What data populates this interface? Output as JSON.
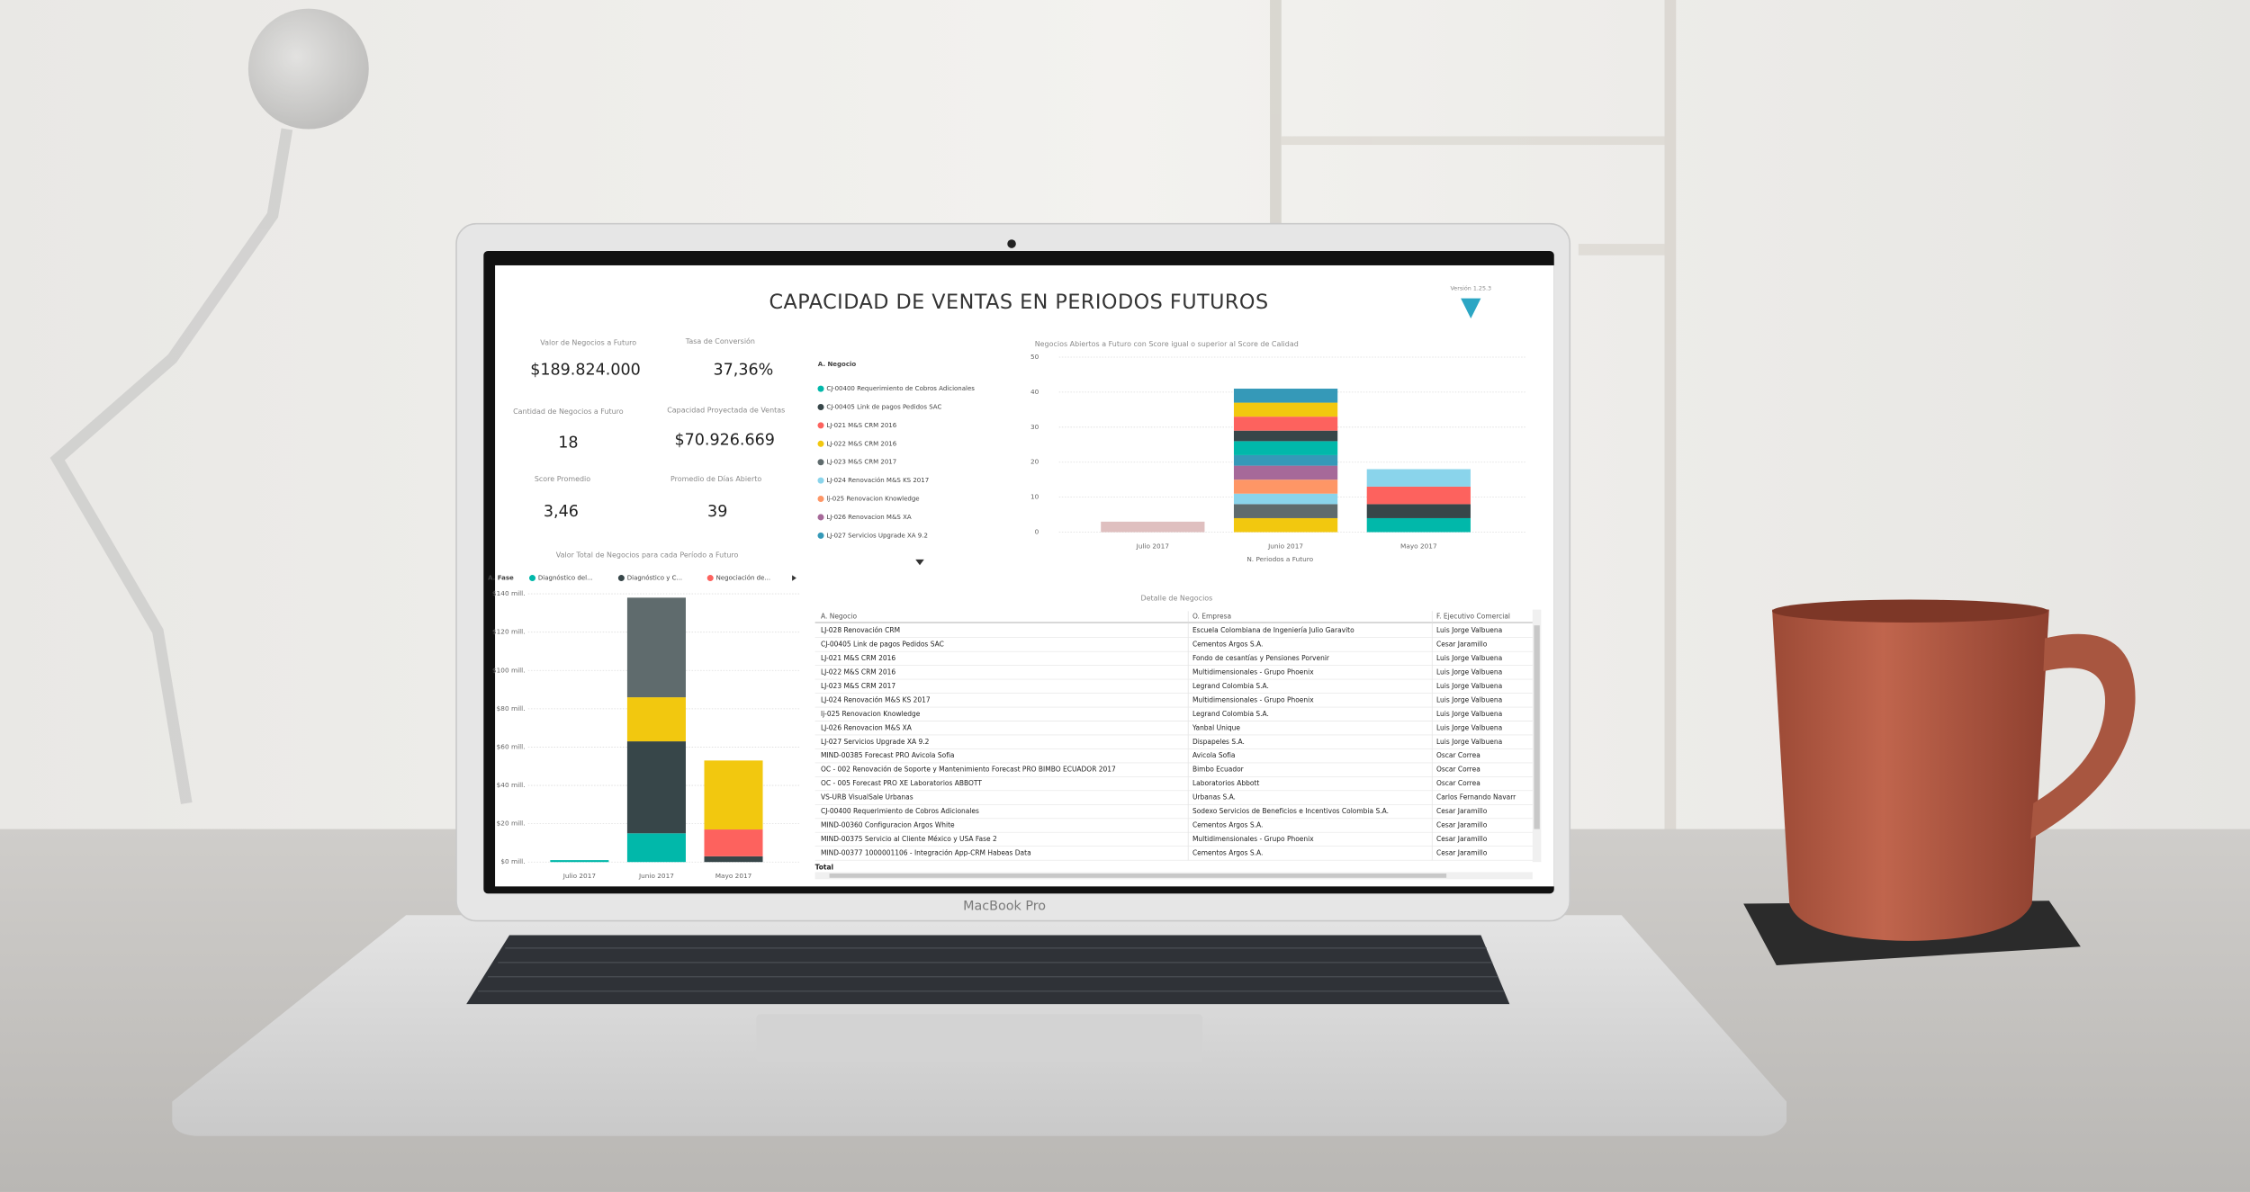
{
  "laptop_label": "MacBook Pro",
  "dashboard": {
    "title": "CAPACIDAD DE VENTAS EN PERIODOS FUTUROS",
    "version": "Versión 1.25.3",
    "kpis": [
      {
        "label": "Valor de Negocios a Futuro",
        "value": "$189.824.000"
      },
      {
        "label": "Tasa de Conversión",
        "value": "37,36%"
      },
      {
        "label": "Cantidad de Negocios a Futuro",
        "value": "18"
      },
      {
        "label": "Capacidad Proyectada de Ventas",
        "value": "$70.926.669"
      },
      {
        "label": "Score Promedio",
        "value": "3,46"
      },
      {
        "label": "Promedio de Días Abierto",
        "value": "39"
      }
    ],
    "table": {
      "title": "Detalle de Negocios",
      "columns": [
        "A. Negocio",
        "O. Empresa",
        "F. Ejecutivo Comercial"
      ],
      "rows": [
        [
          "LJ-028 Renovación CRM",
          "Escuela Colombiana de Ingeniería Julio Garavito",
          "Luis Jorge Valbuena"
        ],
        [
          "CJ-00405 Link de pagos Pedidos SAC",
          "Cementos Argos S.A.",
          "Cesar Jaramillo"
        ],
        [
          "LJ-021 M&S CRM 2016",
          "Fondo de cesantías y Pensiones Porvenir",
          "Luis Jorge Valbuena"
        ],
        [
          "LJ-022 M&S CRM 2016",
          "Multidimensionales - Grupo Phoenix",
          "Luis Jorge Valbuena"
        ],
        [
          "LJ-023 M&S CRM 2017",
          "Legrand Colombia S.A.",
          "Luis Jorge Valbuena"
        ],
        [
          "LJ-024 Renovación M&S KS 2017",
          "Multidimensionales - Grupo Phoenix",
          "Luis Jorge Valbuena"
        ],
        [
          "lj-025 Renovacion Knowledge",
          "Legrand Colombia S.A.",
          "Luis Jorge Valbuena"
        ],
        [
          "LJ-026 Renovacion M&S XA",
          "Yanbal Unique",
          "Luis Jorge Valbuena"
        ],
        [
          "LJ-027 Servicios Upgrade XA 9.2",
          "Dispapeles S.A.",
          "Luis Jorge Valbuena"
        ],
        [
          "MIND-00385 Forecast PRO Avicola Sofia",
          "Avicola Sofia",
          "Oscar Correa"
        ],
        [
          "OC - 002 Renovación de Soporte y Mantenimiento Forecast PRO BIMBO ECUADOR 2017",
          "Bimbo Ecuador",
          "Oscar Correa"
        ],
        [
          "OC - 005 Forecast PRO XE Laboratorios ABBOTT",
          "Laboratorios Abbott",
          "Oscar Correa"
        ],
        [
          "VS-URB VisualSale Urbanas",
          "Urbanas S.A.",
          "Carlos Fernando Navarr"
        ],
        [
          "CJ-00400 Requerimiento de Cobros Adicionales",
          "Sodexo Servicios de Beneficios e Incentivos Colombia S.A.",
          "Cesar Jaramillo"
        ],
        [
          "MIND-00360 Configuracion Argos White",
          "Cementos Argos S.A.",
          "Cesar Jaramillo"
        ],
        [
          "MIND-00375 Servicio al Cliente México y USA Fase 2",
          "Multidimensionales - Grupo Phoenix",
          "Cesar Jaramillo"
        ],
        [
          "MIND-00377 1000001106 - Integración App-CRM Habeas Data",
          "Cementos Argos S.A.",
          "Cesar Jaramillo"
        ]
      ],
      "total_label": "Total"
    }
  },
  "chart_data": [
    {
      "type": "bar",
      "stacked": true,
      "title": "Valor Total de Negocios para cada Período a Futuro",
      "legend_title": "A. Fase",
      "legend": "top",
      "categories": [
        "Julio 2017",
        "Junio 2017",
        "Mayo 2017"
      ],
      "series": [
        {
          "name": "Diagnóstico del...",
          "color": "#01B8AA",
          "values": [
            1,
            15,
            0
          ]
        },
        {
          "name": "Diagnóstico y C...",
          "color": "#374649",
          "values": [
            0,
            48,
            3
          ]
        },
        {
          "name": "Negociación de...",
          "color": "#FD625E",
          "values": [
            0,
            0,
            14
          ]
        },
        {
          "name": null,
          "color": "#F2C80F",
          "values": [
            0,
            23,
            36
          ]
        },
        {
          "name": null,
          "color": "#5F6B6D",
          "values": [
            0,
            52,
            0
          ]
        }
      ],
      "ylim": [
        0,
        140
      ],
      "yticks": [
        {
          "value": 0,
          "label": "$0 mill."
        },
        {
          "value": 20,
          "label": "$20 mill."
        },
        {
          "value": 40,
          "label": "$40 mill."
        },
        {
          "value": 60,
          "label": "$60 mill."
        },
        {
          "value": 80,
          "label": "$80 mill."
        },
        {
          "value": 100,
          "label": "$100 mill."
        },
        {
          "value": 120,
          "label": "$120 mill."
        },
        {
          "value": 140,
          "label": "$140 mill."
        }
      ],
      "grid": true
    },
    {
      "type": "bar",
      "stacked": true,
      "title": "Negocios Abiertos a Futuro con Score igual o superior al Score de Calidad",
      "legend_title": "A. Negocio",
      "legend": "left",
      "x_label": "N. Periodos a Futuro",
      "categories": [
        "Julio 2017",
        "Junio 2017",
        "Mayo 2017"
      ],
      "series": [
        {
          "name": "CJ-00400 Requerimiento de Cobros Adicionales",
          "color": "#01B8AA",
          "values": [
            0,
            0,
            4
          ]
        },
        {
          "name": "CJ-00405 Link de pagos Pedidos SAC",
          "color": "#374649",
          "values": [
            0,
            0,
            4
          ]
        },
        {
          "name": "LJ-021 M&S CRM 2016",
          "color": "#FD625E",
          "values": [
            0,
            0,
            5
          ]
        },
        {
          "name": "LJ-022 M&S CRM 2016",
          "color": "#F2C80F",
          "values": [
            0,
            4,
            0
          ]
        },
        {
          "name": "LJ-023 M&S CRM 2017",
          "color": "#5F6B6D",
          "values": [
            0,
            4,
            0
          ]
        },
        {
          "name": "LJ-024 Renovación M&S KS 2017",
          "color": "#8AD4EB",
          "values": [
            0,
            3,
            5
          ]
        },
        {
          "name": "lj-025 Renovacion Knowledge",
          "color": "#FE9666",
          "values": [
            0,
            4,
            0
          ]
        },
        {
          "name": "LJ-026 Renovacion M&S XA",
          "color": "#A66999",
          "values": [
            0,
            4,
            0
          ]
        },
        {
          "name": "LJ-027 Servicios Upgrade XA 9.2",
          "color": "#3599B8",
          "values": [
            0,
            3,
            0
          ]
        },
        {
          "name": null,
          "color": "#DFBFBF",
          "values": [
            3,
            0,
            0
          ]
        },
        {
          "name": null,
          "color": "#01B8AA",
          "values": [
            0,
            4,
            0
          ]
        },
        {
          "name": null,
          "color": "#374649",
          "values": [
            0,
            3,
            0
          ]
        },
        {
          "name": null,
          "color": "#FD625E",
          "values": [
            0,
            4,
            0
          ]
        },
        {
          "name": null,
          "color": "#F2C80F",
          "values": [
            0,
            4,
            0
          ]
        },
        {
          "name": null,
          "color": "#3599B8",
          "values": [
            0,
            4,
            0
          ]
        }
      ],
      "ylim": [
        0,
        50
      ],
      "yticks": [
        0,
        10,
        20,
        30,
        40,
        50
      ],
      "grid": true
    }
  ]
}
